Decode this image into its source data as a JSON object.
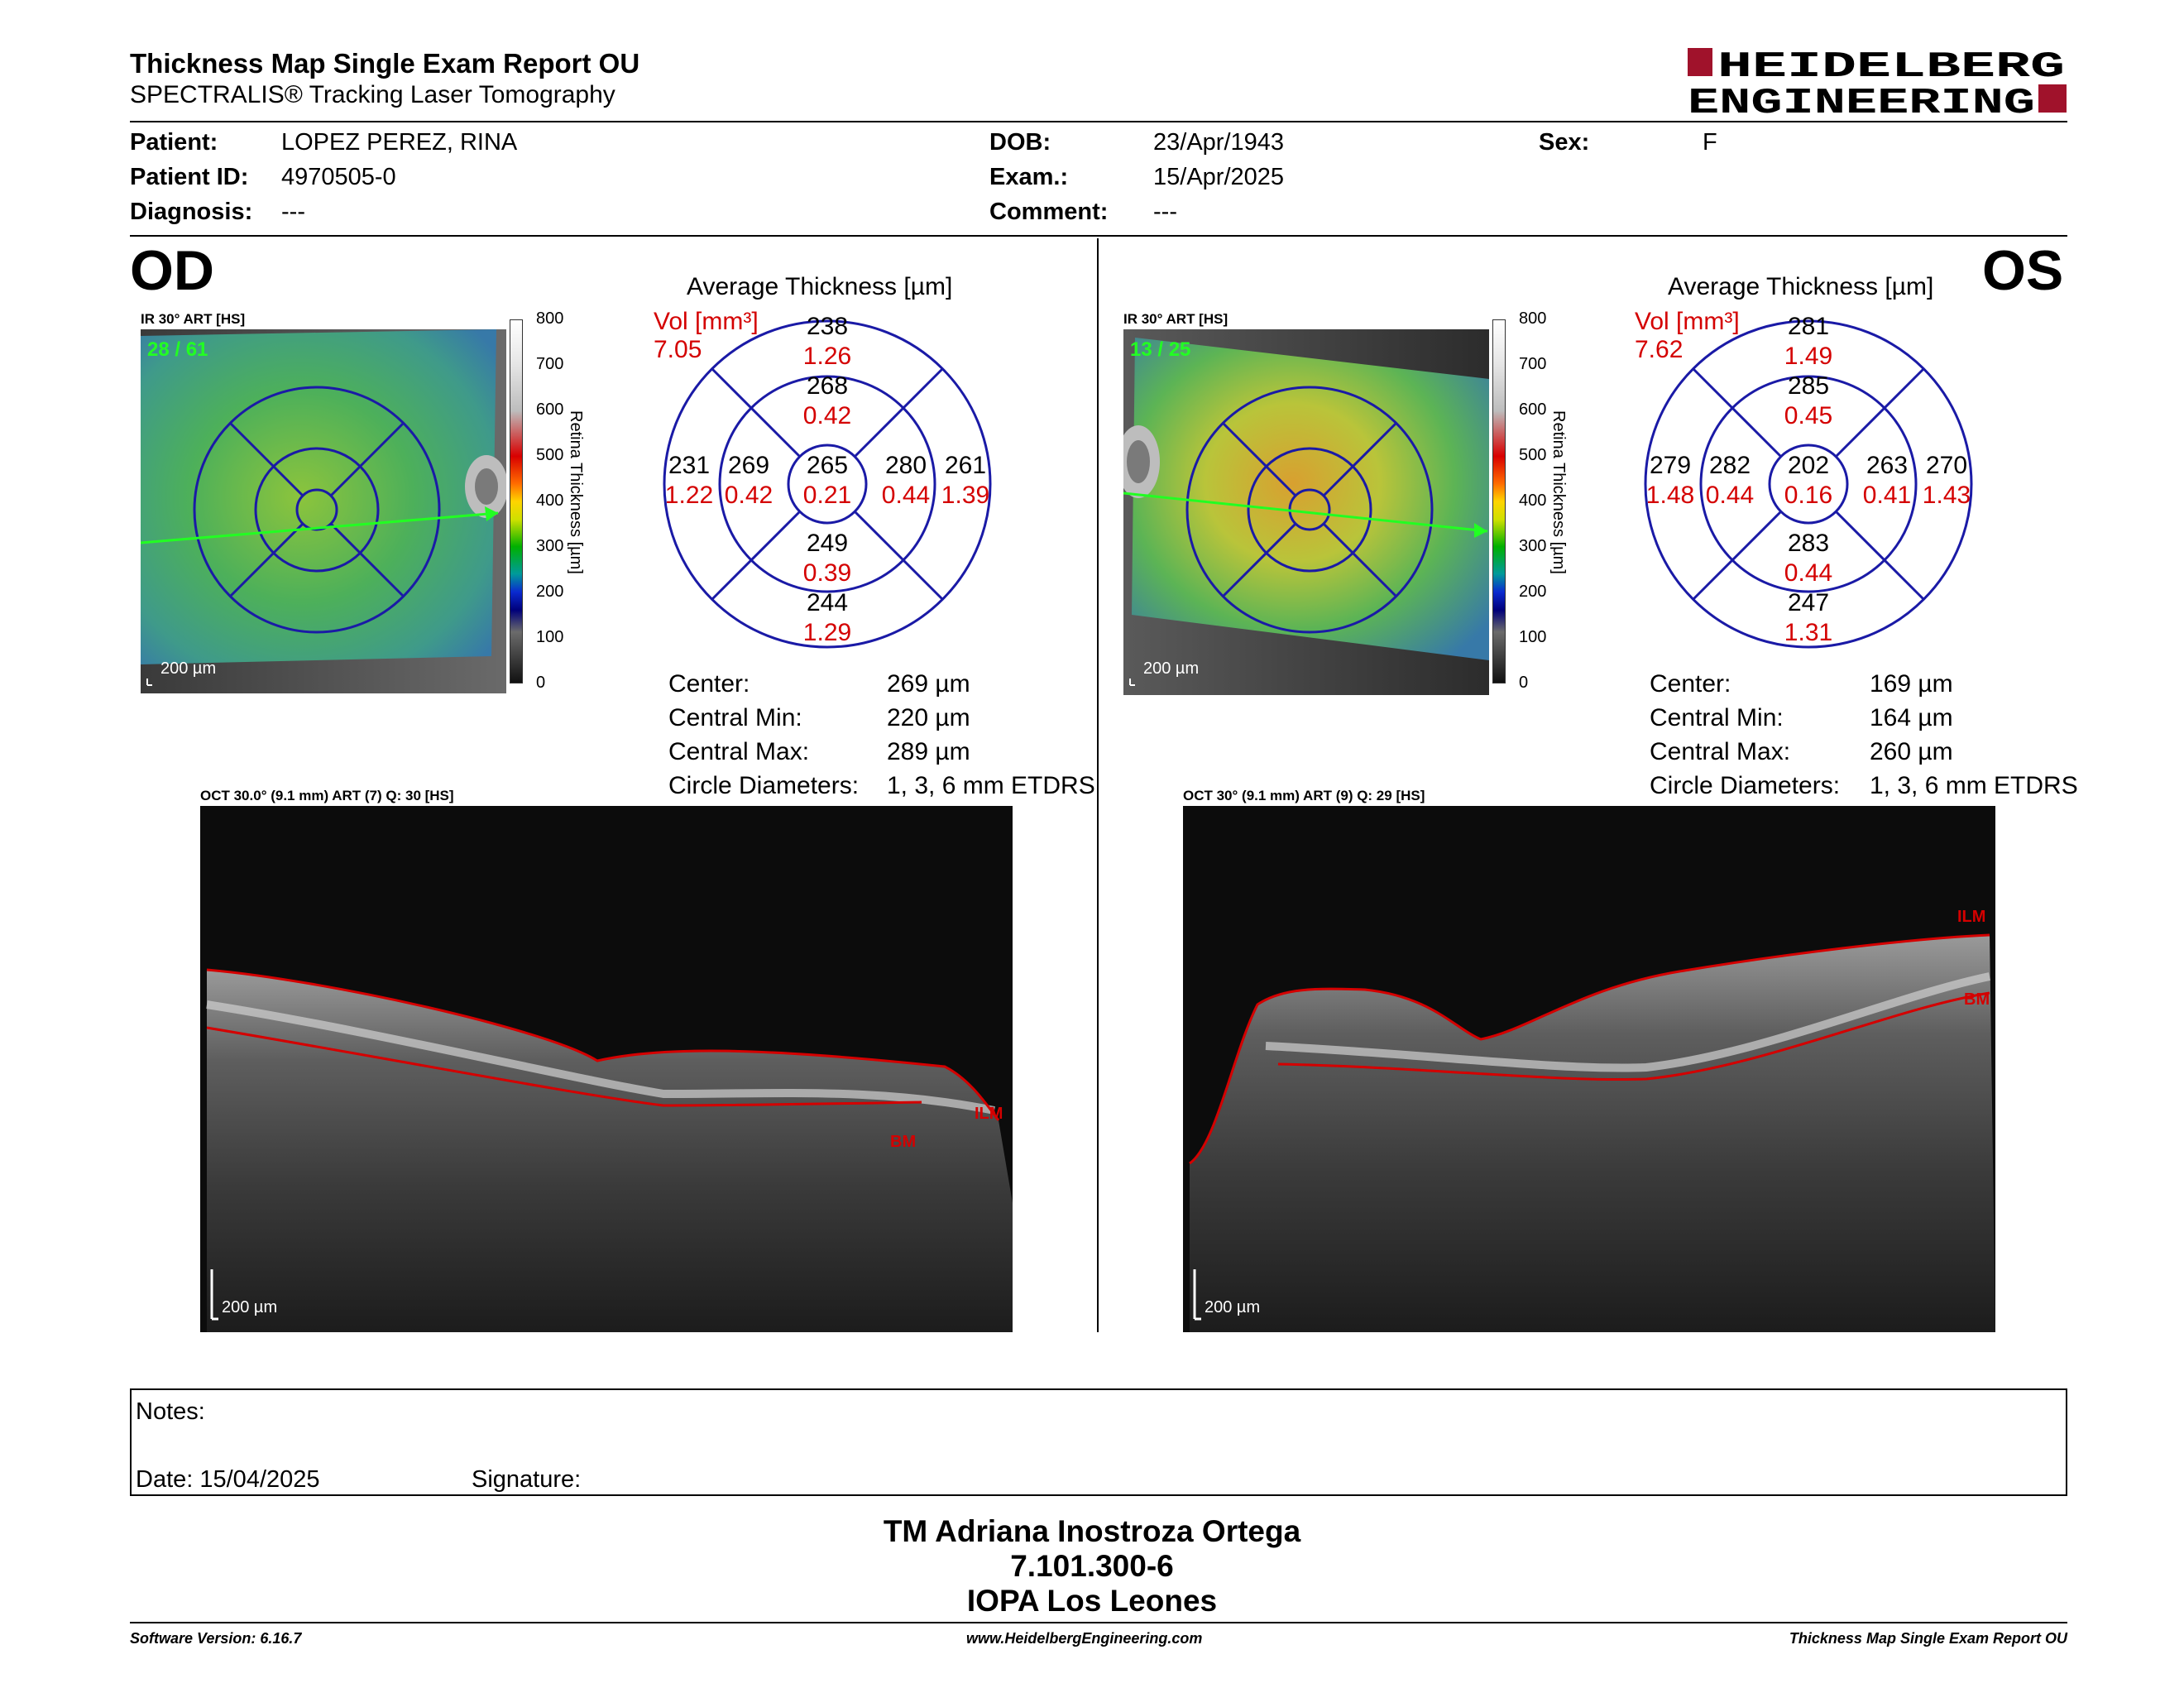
{
  "header": {
    "title": "Thickness Map Single Exam Report OU",
    "subtitle": "SPECTRALIS® Tracking Laser Tomography",
    "logo_line1": "HEIDELBERG",
    "logo_line2": "ENGINEERING"
  },
  "patient": {
    "patient_label": "Patient:",
    "patient_value": "LOPEZ PEREZ, RINA",
    "id_label": "Patient ID:",
    "id_value": "4970505-0",
    "diagnosis_label": "Diagnosis:",
    "diagnosis_value": "---",
    "dob_label": "DOB:",
    "dob_value": "23/Apr/1943",
    "exam_label": "Exam.:",
    "exam_value": "15/Apr/2025",
    "comment_label": "Comment:",
    "comment_value": "---",
    "sex_label": "Sex:",
    "sex_value": "F"
  },
  "colorbar": {
    "title": "Retina  Thickness [µm]",
    "ticks": [
      "800",
      "700",
      "600",
      "500",
      "400",
      "300",
      "200",
      "100",
      "0"
    ]
  },
  "od": {
    "eye_label": "OD",
    "ir_label": "IR 30° ART [HS]",
    "frame_counter": "28 / 61",
    "scale_label": "200 µm",
    "avg_title": "Average Thickness [µm]",
    "vol_label": "Vol [mm³]",
    "vol_total": "7.05",
    "grid": {
      "outer_sup": "238",
      "outer_sup_vol": "1.26",
      "inner_sup": "268",
      "inner_sup_vol": "0.42",
      "outer_temp": "231",
      "outer_temp_vol": "1.22",
      "inner_temp": "269",
      "inner_temp_vol": "0.42",
      "center": "265",
      "center_vol": "0.21",
      "inner_nasal": "280",
      "inner_nasal_vol": "0.44",
      "outer_nasal": "261",
      "outer_nasal_vol": "1.39",
      "inner_inf": "249",
      "inner_inf_vol": "0.39",
      "outer_inf": "244",
      "outer_inf_vol": "1.29"
    },
    "stats": {
      "center_label": "Center:",
      "center_value": "269 µm",
      "min_label": "Central Min:",
      "min_value": "220 µm",
      "max_label": "Central Max:",
      "max_value": "289 µm",
      "diam_label": "Circle Diameters:",
      "diam_value": "1, 3, 6 mm ETDRS"
    },
    "oct_label": "OCT 30.0° (9.1 mm) ART (7) Q: 30 [HS]",
    "ilm": "ILM",
    "bm": "BM",
    "oct_scale": "200 µm"
  },
  "os": {
    "eye_label": "OS",
    "ir_label": "IR 30° ART [HS]",
    "frame_counter": "13 / 25",
    "scale_label": "200 µm",
    "avg_title": "Average Thickness [µm]",
    "vol_label": "Vol [mm³]",
    "vol_total": "7.62",
    "grid": {
      "outer_sup": "281",
      "outer_sup_vol": "1.49",
      "inner_sup": "285",
      "inner_sup_vol": "0.45",
      "outer_temp": "279",
      "outer_temp_vol": "1.48",
      "inner_temp": "282",
      "inner_temp_vol": "0.44",
      "center": "202",
      "center_vol": "0.16",
      "inner_nasal": "263",
      "inner_nasal_vol": "0.41",
      "outer_nasal": "270",
      "outer_nasal_vol": "1.43",
      "inner_inf": "283",
      "inner_inf_vol": "0.44",
      "outer_inf": "247",
      "outer_inf_vol": "1.31"
    },
    "stats": {
      "center_label": "Center:",
      "center_value": "169 µm",
      "min_label": "Central Min:",
      "min_value": "164 µm",
      "max_label": "Central Max:",
      "max_value": "260 µm",
      "diam_label": "Circle Diameters:",
      "diam_value": "1, 3, 6 mm ETDRS"
    },
    "oct_label": "OCT 30° (9.1 mm) ART (9) Q: 29 [HS]",
    "ilm": "ILM",
    "bm": "BM",
    "oct_scale": "200 µm"
  },
  "notes": {
    "notes_label": "Notes:",
    "date_label": "Date: 15/04/2025",
    "signature_label": "Signature:"
  },
  "signature_block": {
    "line1": "TM Adriana Inostroza Ortega",
    "line2": "7.101.300-6",
    "line3": "IOPA Los Leones"
  },
  "footer": {
    "left": "Software Version: 6.16.7",
    "center": "www.HeidelbergEngineering.com",
    "right": "Thickness Map Single Exam Report OU"
  },
  "colors": {
    "logo_red": "#a0122b",
    "annotation_red": "#d40000",
    "grid_blue": "#1a1aa6",
    "tracking_green": "#22ff22"
  }
}
